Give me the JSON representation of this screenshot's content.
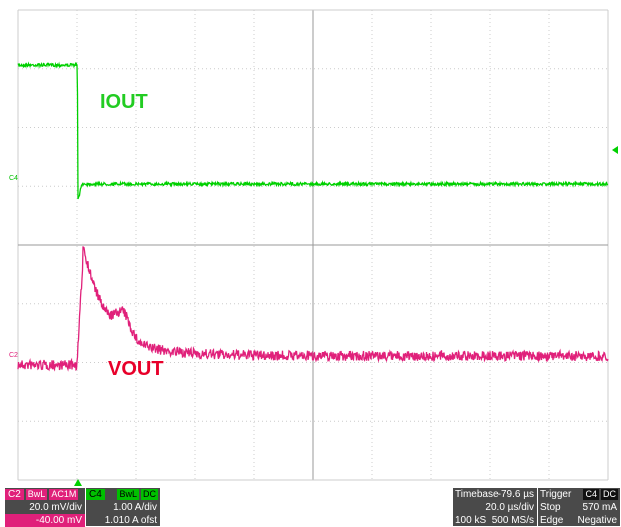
{
  "traces": [
    {
      "label": "IOUT",
      "channel": "C4"
    },
    {
      "label": "VOUT",
      "channel": "C2"
    }
  ],
  "channels": [
    {
      "name": "C2",
      "tags": [
        "BwL",
        "AC1M"
      ],
      "scale": "20.0 mV/div",
      "offset": "-40.00 mV"
    },
    {
      "name": "C4",
      "tags": [
        "BwL",
        "DC"
      ],
      "scale": "1.00 A/div",
      "offset": "1.010 A ofst"
    }
  ],
  "timebase": {
    "label": "Timebase",
    "delay": "-79.6 µs",
    "scale": "20.0 µs/div",
    "samples": "100 kS",
    "rate": "500 MS/s"
  },
  "trigger": {
    "label": "Trigger",
    "source": "C4",
    "coupling": "DC",
    "mode": "Stop",
    "level": "570 mA",
    "type": "Edge",
    "slope": "Negative"
  }
}
